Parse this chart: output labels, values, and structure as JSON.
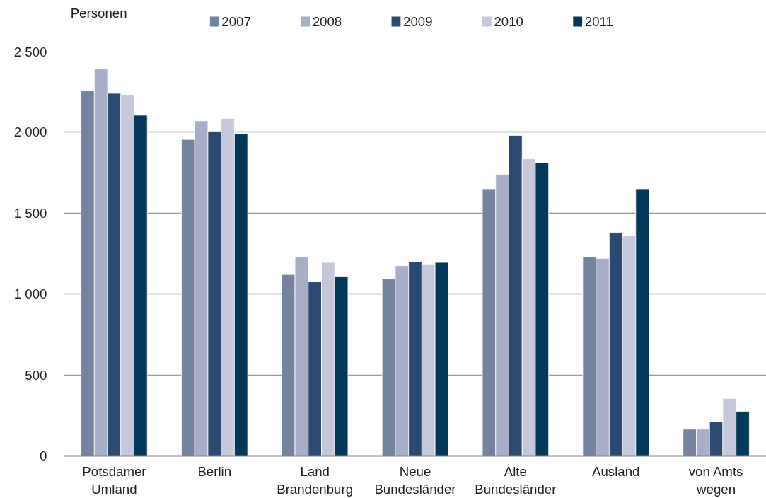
{
  "chart_data": {
    "type": "bar",
    "ylabel": "Personen",
    "categories": [
      "Potsdamer\nUmland",
      "Berlin",
      "Land\nBrandenburg",
      "Neue\nBundesländer",
      "Alte\nBundesländer",
      "Ausland",
      "von Amts\nwegen"
    ],
    "series": [
      {
        "name": "2007",
        "color": "#7383a0",
        "values": [
          2255,
          1955,
          1120,
          1095,
          1650,
          1230,
          165
        ]
      },
      {
        "name": "2008",
        "color": "#a8aec8",
        "values": [
          2390,
          2070,
          1230,
          1175,
          1740,
          1220,
          165
        ]
      },
      {
        "name": "2009",
        "color": "#2a4a72",
        "values": [
          2240,
          2005,
          1075,
          1200,
          1980,
          1380,
          210
        ]
      },
      {
        "name": "2010",
        "color": "#c4c8da",
        "values": [
          2230,
          2085,
          1195,
          1185,
          1835,
          1360,
          355
        ]
      },
      {
        "name": "2011",
        "color": "#023859",
        "values": [
          2105,
          1990,
          1110,
          1195,
          1810,
          1650,
          275
        ]
      }
    ],
    "ylim": [
      0,
      2500
    ],
    "yticks": [
      0,
      500,
      {
        "value": 1000,
        "label": "1 000"
      },
      {
        "value": 1500,
        "label": "1 500"
      },
      {
        "value": 2000,
        "label": "2 000"
      },
      {
        "value": 2500,
        "label": "2 500"
      }
    ],
    "grid": "y",
    "legend": "top"
  }
}
